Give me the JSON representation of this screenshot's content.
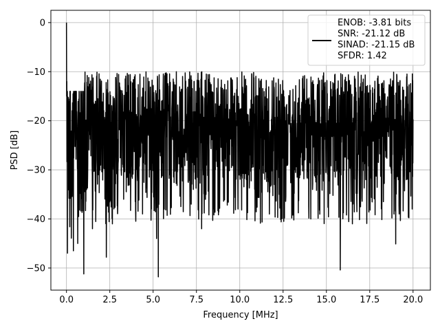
{
  "chart_data": {
    "type": "line",
    "title": "",
    "xlabel": "Frequency [MHz]",
    "ylabel": "PSD [dB]",
    "xlim": [
      -0.9,
      21.0
    ],
    "ylim": [
      -54.5,
      2.5
    ],
    "xticks": [
      0.0,
      2.5,
      5.0,
      7.5,
      10.0,
      12.5,
      15.0,
      17.5,
      20.0
    ],
    "xtick_labels": [
      "0.0",
      "2.5",
      "5.0",
      "7.5",
      "10.0",
      "12.5",
      "15.0",
      "17.5",
      "20.0"
    ],
    "yticks": [
      0,
      -10,
      -20,
      -30,
      -40,
      -50
    ],
    "ytick_labels": [
      "0",
      "−10",
      "−20",
      "−30",
      "−40",
      "−50"
    ],
    "grid": true,
    "legend_position": "top-right",
    "series": [
      {
        "color": "#000000",
        "x_range": [
          0.0,
          20.0
        ],
        "note_shape": "dense noise floor",
        "baseline_mean": -21,
        "peak_points": [
          {
            "x": 0.0,
            "y": 0.0
          },
          {
            "x": 0.4,
            "y": -46.5
          },
          {
            "x": 1.0,
            "y": -51.2
          },
          {
            "x": 2.3,
            "y": -47.8
          },
          {
            "x": 5.3,
            "y": -51.8
          },
          {
            "x": 15.8,
            "y": -50.4
          },
          {
            "x": 19.0,
            "y": -45.1
          }
        ]
      }
    ],
    "legend": {
      "lines": [
        "ENOB: -3.81 bits",
        "SNR: -21.12 dB",
        "SINAD: -21.15 dB",
        "SFDR: 1.42"
      ]
    }
  }
}
